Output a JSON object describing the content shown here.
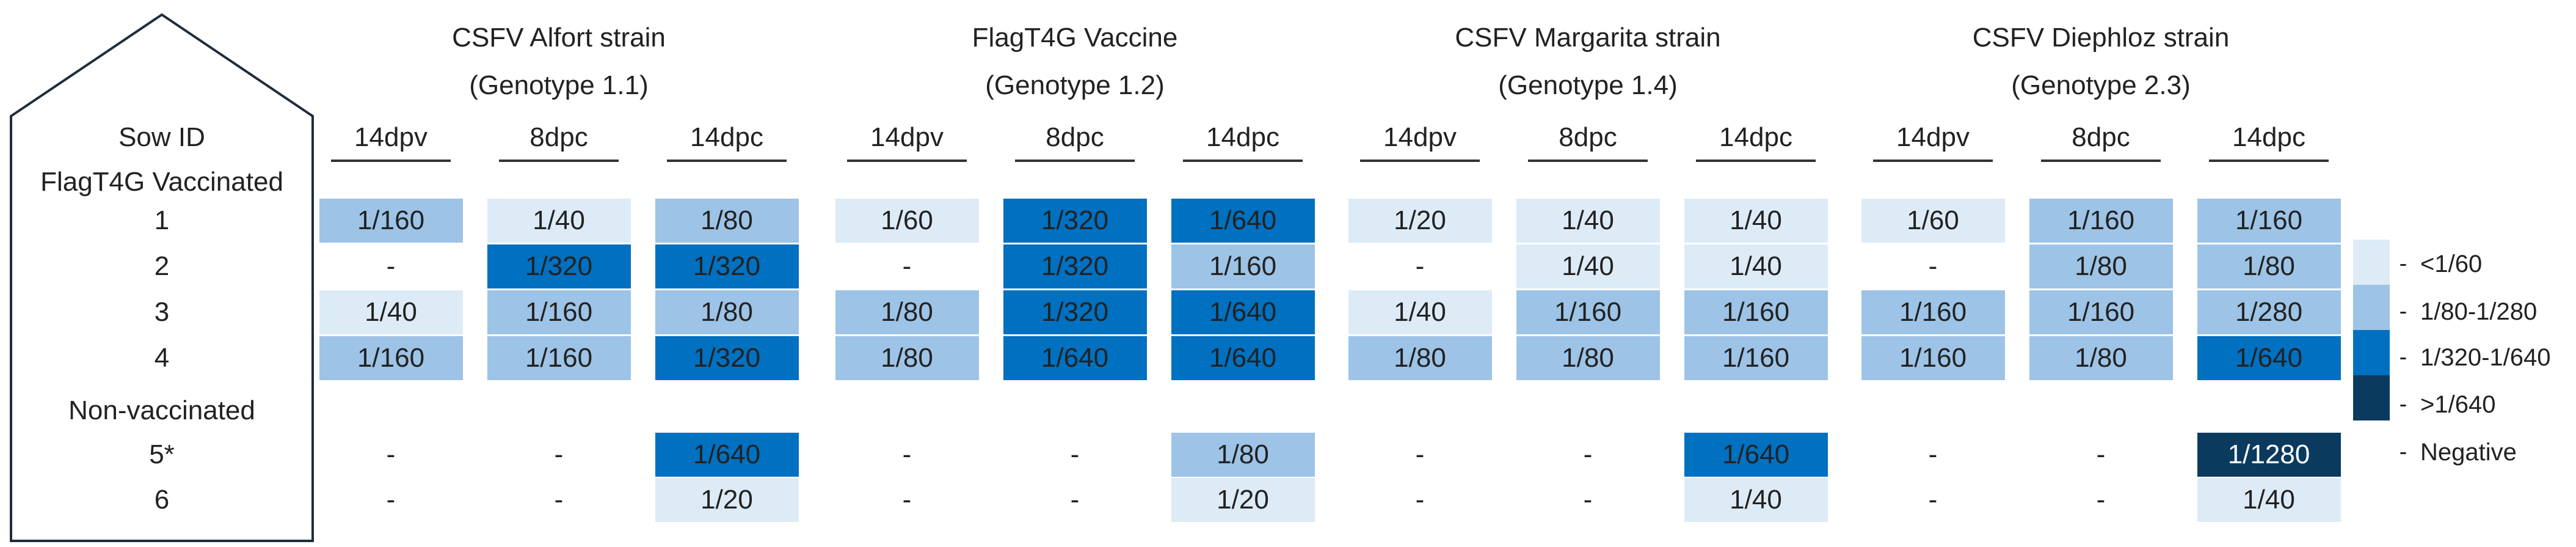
{
  "chart_data": {
    "type": "table",
    "row_header": "Sow ID",
    "groups": [
      {
        "label": "FlagT4G Vaccinated",
        "rows": [
          "1",
          "2",
          "3",
          "4"
        ]
      },
      {
        "label": "Non-vaccinated",
        "rows": [
          "5*",
          "6"
        ]
      }
    ],
    "strains": [
      {
        "name": "CSFV Alfort strain",
        "genotype": "(Genotype 1.1)"
      },
      {
        "name": "FlagT4G  Vaccine",
        "genotype": "(Genotype 1.2)"
      },
      {
        "name": "CSFV Margarita strain",
        "genotype": "(Genotype 1.4)"
      },
      {
        "name": "CSFV Diephloz strain",
        "genotype": "(Genotype 2.3)"
      }
    ],
    "timepoints": [
      "14dpv",
      "8dpc",
      "14dpc"
    ],
    "values": [
      [
        "1/160",
        "1/40",
        "1/80",
        "1/60",
        "1/320",
        "1/640",
        "1/20",
        "1/40",
        "1/40",
        "1/60",
        "1/160",
        "1/160"
      ],
      [
        "-",
        "1/320",
        "1/320",
        "-",
        "1/320",
        "1/160",
        "-",
        "1/40",
        "1/40",
        "-",
        "1/80",
        "1/80"
      ],
      [
        "1/40",
        "1/160",
        "1/80",
        "1/80",
        "1/320",
        "1/640",
        "1/40",
        "1/160",
        "1/160",
        "1/160",
        "1/160",
        "1/280"
      ],
      [
        "1/160",
        "1/160",
        "1/320",
        "1/80",
        "1/640",
        "1/640",
        "1/80",
        "1/80",
        "1/160",
        "1/160",
        "1/80",
        "1/640"
      ],
      [
        "-",
        "-",
        "1/640",
        "-",
        "-",
        "1/80",
        "-",
        "-",
        "1/640",
        "-",
        "-",
        "1/1280"
      ],
      [
        "-",
        "-",
        "1/20",
        "-",
        "-",
        "1/20",
        "-",
        "-",
        "1/40",
        "-",
        "-",
        "1/40"
      ]
    ],
    "levels": [
      [
        2,
        1,
        2,
        1,
        3,
        3,
        1,
        1,
        1,
        1,
        2,
        2
      ],
      [
        0,
        3,
        3,
        0,
        3,
        2,
        0,
        1,
        1,
        0,
        2,
        2
      ],
      [
        1,
        2,
        2,
        2,
        3,
        3,
        1,
        2,
        2,
        2,
        2,
        2
      ],
      [
        2,
        2,
        3,
        2,
        3,
        3,
        2,
        2,
        2,
        2,
        2,
        3
      ],
      [
        0,
        0,
        3,
        0,
        0,
        2,
        0,
        0,
        3,
        0,
        0,
        4
      ],
      [
        0,
        0,
        1,
        0,
        0,
        1,
        0,
        0,
        1,
        0,
        0,
        1
      ]
    ],
    "legend": [
      {
        "label": "<1/60",
        "color": "#ddebf7"
      },
      {
        "label": "1/80-1/280",
        "color": "#9dc3e6"
      },
      {
        "label": "1/320-1/640",
        "color": "#0070c0"
      },
      {
        "label": ">1/640",
        "color": "#0b3a5f"
      },
      {
        "label": "Negative",
        "color": "#ffffff"
      }
    ],
    "legend_placement": "right"
  }
}
